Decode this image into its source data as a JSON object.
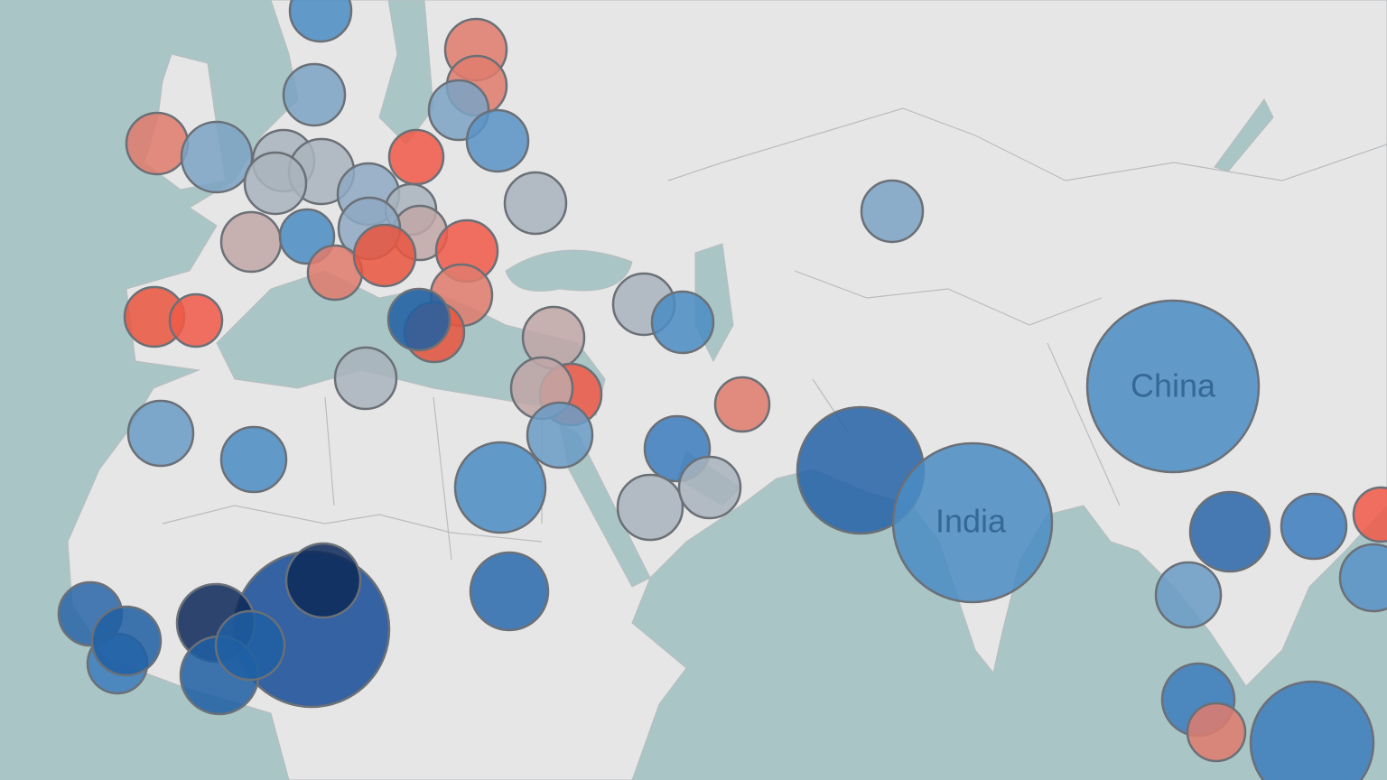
{
  "map": {
    "labels": [
      "China",
      "India"
    ]
  }
}
